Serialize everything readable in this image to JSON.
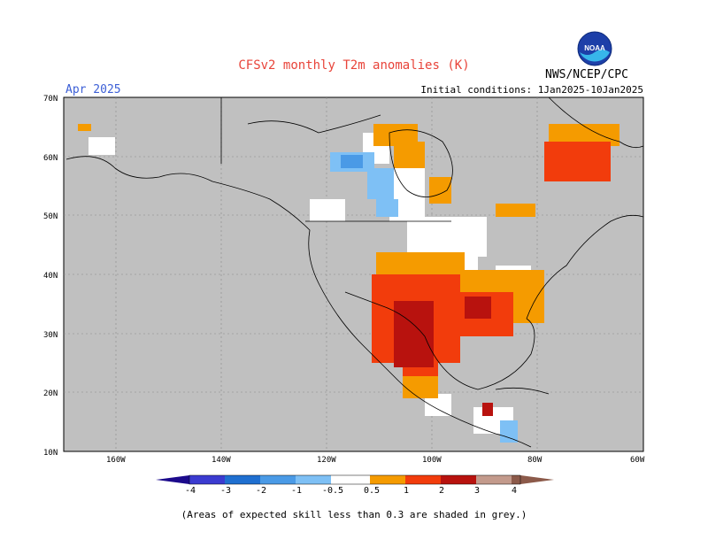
{
  "header": {
    "title": "CFSv2 monthly T2m anomalies (K)",
    "month": "Apr 2025",
    "initial_conditions": "Initial conditions: 1Jan2025-10Jan2025",
    "organization": "NWS/NCEP/CPC",
    "logo_text": "NOAA"
  },
  "axes": {
    "lat_labels": [
      "70N",
      "60N",
      "50N",
      "40N",
      "30N",
      "20N",
      "10N"
    ],
    "lon_labels": [
      "160W",
      "140W",
      "120W",
      "100W",
      "80W",
      "60W"
    ]
  },
  "colorbar": {
    "labels": [
      "-4",
      "-3",
      "-2",
      "-1",
      "-0.5",
      "0.5",
      "1",
      "2",
      "3",
      "4"
    ],
    "colors": [
      "#1c0a8c",
      "#3b3bd0",
      "#1f6fd0",
      "#4a9ae6",
      "#7ec0f5",
      "#ffffff",
      "#f59b00",
      "#f23c0c",
      "#b8120e",
      "#8c0000",
      "#c39a8c",
      "#8c5a4a"
    ]
  },
  "map": {
    "ocean_color": "#c0c0c0",
    "land_color": "#c0c0c0",
    "skill_mask_note": "grey"
  },
  "footnote": "(Areas of expected skill less than 0.3 are shaded in grey.)"
}
